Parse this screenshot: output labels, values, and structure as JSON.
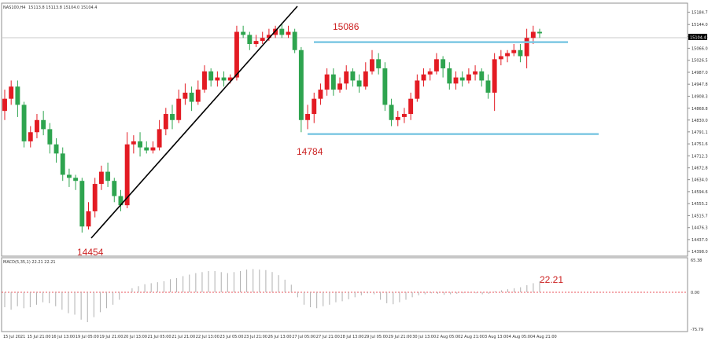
{
  "header": {
    "symbol": "NAS100,H4",
    "ohlc": "15113.8 15113.8 15104.0 15104.4"
  },
  "macd": {
    "label": "MACD(5,35,1) 22.21 22.21",
    "value_label": "22.21",
    "scale": [
      "65.38",
      "0.00",
      "-75.79"
    ]
  },
  "annotations": {
    "low": "14454",
    "high": "15086",
    "support": "14784"
  },
  "colors": {
    "bull": "#2ea44f",
    "bear": "#e31b23",
    "level": "#7ec8e3",
    "trend": "#000000",
    "label": "#cc2222",
    "grid": "#c8c8c8"
  },
  "chart_data": [
    {
      "type": "candlestick",
      "title": "NAS100,H4",
      "y_ticks": [
        "15184.7",
        "15144.0",
        "15104.4",
        "15066.0",
        "15026.5",
        "14987.0",
        "14947.8",
        "14908.3",
        "14868.8",
        "14830.0",
        "14791.1",
        "14751.6",
        "14712.3",
        "14672.8",
        "14634.0",
        "14594.6",
        "14555.2",
        "14515.7",
        "14476.3",
        "14437.0",
        "14398.0"
      ],
      "x_ticks": [
        "15 Jul 2021",
        "15 Jul 21:00",
        "16 Jul 13:00",
        "19 Jul 05:00",
        "19 Jul 21:00",
        "20 Jul 13:00",
        "21 Jul 05:00",
        "21 Jul 21:00",
        "22 Jul 13:00",
        "23 Jul 05:00",
        "23 Jul 21:00",
        "26 Jul 13:00",
        "27 Jul 05:00",
        "27 Jul 21:00",
        "28 Jul 13:00",
        "29 Jul 05:00",
        "29 Jul 21:00",
        "30 Jul 13:00",
        "2 Aug 05:00",
        "2 Aug 21:00",
        "3 Aug 13:00",
        "4 Aug 05:00",
        "4 Aug 21:00"
      ],
      "ylim": [
        14398,
        15204
      ],
      "candles": [
        [
          14860,
          14900,
          14930,
          14830
        ],
        [
          14900,
          14940,
          14960,
          14880
        ],
        [
          14940,
          14880,
          14960,
          14840
        ],
        [
          14880,
          14760,
          14890,
          14740
        ],
        [
          14760,
          14790,
          14810,
          14740
        ],
        [
          14790,
          14830,
          14850,
          14770
        ],
        [
          14830,
          14800,
          14860,
          14780
        ],
        [
          14800,
          14750,
          14820,
          14720
        ],
        [
          14750,
          14720,
          14770,
          14690
        ],
        [
          14720,
          14650,
          14740,
          14630
        ],
        [
          14650,
          14640,
          14670,
          14610
        ],
        [
          14640,
          14630,
          14650,
          14600
        ],
        [
          14630,
          14480,
          14640,
          14460
        ],
        [
          14480,
          14530,
          14560,
          14470
        ],
        [
          14530,
          14620,
          14640,
          14510
        ],
        [
          14620,
          14660,
          14680,
          14600
        ],
        [
          14660,
          14630,
          14690,
          14610
        ],
        [
          14630,
          14580,
          14640,
          14560
        ],
        [
          14580,
          14550,
          14600,
          14530
        ],
        [
          14550,
          14750,
          14790,
          14540
        ],
        [
          14750,
          14760,
          14780,
          14720
        ],
        [
          14760,
          14740,
          14790,
          14710
        ],
        [
          14740,
          14730,
          14760,
          14720
        ],
        [
          14730,
          14740,
          14760,
          14720
        ],
        [
          14740,
          14800,
          14830,
          14730
        ],
        [
          14800,
          14850,
          14870,
          14780
        ],
        [
          14850,
          14830,
          14880,
          14800
        ],
        [
          14830,
          14900,
          14930,
          14820
        ],
        [
          14900,
          14920,
          14950,
          14880
        ],
        [
          14920,
          14890,
          14940,
          14860
        ],
        [
          14890,
          14930,
          14960,
          14880
        ],
        [
          14930,
          14990,
          15010,
          14920
        ],
        [
          14990,
          14960,
          15000,
          14940
        ],
        [
          14960,
          14970,
          14990,
          14940
        ],
        [
          14970,
          14960,
          14990,
          14940
        ],
        [
          14960,
          14970,
          14980,
          14950
        ],
        [
          14970,
          15120,
          15140,
          14960
        ],
        [
          15120,
          15110,
          15140,
          15100
        ],
        [
          15110,
          15080,
          15120,
          15060
        ],
        [
          15080,
          15090,
          15110,
          15070
        ],
        [
          15090,
          15100,
          15120,
          15080
        ],
        [
          15100,
          15110,
          15130,
          15090
        ],
        [
          15110,
          15130,
          15140,
          15100
        ],
        [
          15130,
          15110,
          15150,
          15100
        ],
        [
          15110,
          15120,
          15140,
          15100
        ],
        [
          15120,
          15060,
          15130,
          15050
        ],
        [
          15060,
          14830,
          15070,
          14790
        ],
        [
          14830,
          14850,
          14880,
          14800
        ],
        [
          14850,
          14900,
          14920,
          14820
        ],
        [
          14900,
          14930,
          14950,
          14880
        ],
        [
          14930,
          14980,
          15000,
          14910
        ],
        [
          14980,
          14930,
          15000,
          14910
        ],
        [
          14930,
          14950,
          14970,
          14920
        ],
        [
          14950,
          14990,
          15010,
          14930
        ],
        [
          14990,
          14960,
          15000,
          14940
        ],
        [
          14960,
          14940,
          14980,
          14920
        ],
        [
          14940,
          14990,
          15020,
          14930
        ],
        [
          14990,
          15030,
          15060,
          14980
        ],
        [
          15030,
          15000,
          15050,
          14980
        ],
        [
          15000,
          14880,
          15020,
          14860
        ],
        [
          14880,
          14830,
          14900,
          14810
        ],
        [
          14830,
          14840,
          14860,
          14810
        ],
        [
          14840,
          14850,
          14870,
          14820
        ],
        [
          14850,
          14900,
          14920,
          14830
        ],
        [
          14900,
          14960,
          14980,
          14890
        ],
        [
          14960,
          14980,
          15000,
          14940
        ],
        [
          14980,
          14990,
          15000,
          14960
        ],
        [
          14990,
          15030,
          15050,
          14980
        ],
        [
          15030,
          15000,
          15040,
          14970
        ],
        [
          15000,
          14950,
          15020,
          14930
        ],
        [
          14950,
          14970,
          14990,
          14930
        ],
        [
          14970,
          14960,
          14990,
          14940
        ],
        [
          14960,
          14980,
          15000,
          14950
        ],
        [
          14980,
          14990,
          15010,
          14960
        ],
        [
          14990,
          14960,
          15000,
          14940
        ],
        [
          14960,
          14920,
          14980,
          14900
        ],
        [
          14920,
          15030,
          15050,
          14860
        ],
        [
          15030,
          15040,
          15060,
          15010
        ],
        [
          15040,
          15050,
          15060,
          15020
        ],
        [
          15050,
          15060,
          15080,
          15040
        ],
        [
          15060,
          15040,
          15080,
          15020
        ],
        [
          15040,
          15100,
          15130,
          15000
        ],
        [
          15100,
          15120,
          15140,
          15080
        ],
        [
          15120,
          15115,
          15130,
          15100
        ]
      ],
      "levels": [
        {
          "name": "15086",
          "value": 15086
        },
        {
          "name": "14784",
          "value": 14784
        }
      ]
    },
    {
      "type": "bar",
      "title": "MACD(5,35,1) 22.21 22.21",
      "ylim": [
        -75.79,
        65.38
      ],
      "values": [
        -30,
        -35,
        -28,
        -32,
        -30,
        -25,
        -20,
        -22,
        -28,
        -35,
        -42,
        -45,
        -55,
        -60,
        -50,
        -40,
        -32,
        -25,
        -15,
        0,
        8,
        12,
        16,
        18,
        20,
        22,
        26,
        28,
        32,
        35,
        38,
        40,
        42,
        42,
        40,
        38,
        40,
        42,
        45,
        46,
        45,
        44,
        40,
        34,
        25,
        15,
        -10,
        -25,
        -30,
        -32,
        -28,
        -25,
        -20,
        -18,
        -14,
        -10,
        -6,
        -2,
        -4,
        -15,
        -22,
        -24,
        -20,
        -15,
        -10,
        -6,
        -4,
        -2,
        -3,
        -5,
        -4,
        -3,
        -2,
        -1,
        -2,
        -4,
        -3,
        2,
        4,
        6,
        8,
        10,
        14,
        18,
        22
      ]
    }
  ]
}
